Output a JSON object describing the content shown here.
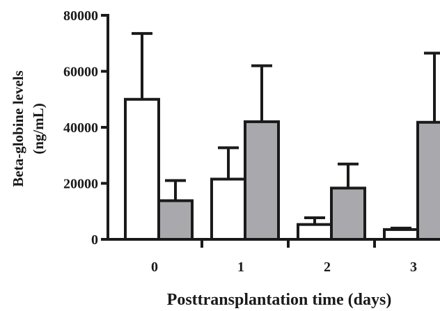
{
  "chart_data": {
    "type": "bar",
    "categories": [
      "0",
      "1",
      "2",
      "3"
    ],
    "series": [
      {
        "color": "#ffffff",
        "values": [
          50000,
          21500,
          5300,
          3500
        ],
        "errors": [
          23500,
          11200,
          2400,
          500
        ]
      },
      {
        "color": "#a9a9ad",
        "values": [
          13800,
          42000,
          18300,
          41800
        ],
        "errors": [
          7200,
          20000,
          8600,
          24700
        ]
      }
    ],
    "yticks": [
      0,
      20000,
      40000,
      60000,
      80000
    ],
    "ylim": [
      0,
      80000
    ],
    "ylabel_line1": "Beta-globine levels",
    "ylabel_line2": "(ng/mL)",
    "xlabel": "Posttransplantation time (days)",
    "error_bars": "upper only",
    "grid": false,
    "legend": "none"
  }
}
